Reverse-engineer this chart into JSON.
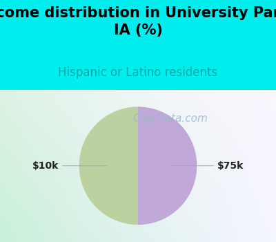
{
  "title": "Income distribution in University Park,\nIA (%)",
  "subtitle": "Hispanic or Latino residents",
  "title_fontsize": 15,
  "subtitle_fontsize": 12,
  "title_color": "#000000",
  "subtitle_color": "#00aaaa",
  "background_color": "#00EEEE",
  "chart_bg_top_right": "#f0f0ff",
  "chart_bg_bottom_left": "#c8f0d8",
  "slices": [
    50,
    50
  ],
  "slice_colors": [
    "#bdd0a0",
    "#c0a8d8"
  ],
  "labels": [
    "$10k",
    "$75k"
  ],
  "label_color": "#222222",
  "label_fontsize": 10,
  "watermark": "City-Data.com",
  "watermark_color": "#a0b8cc",
  "watermark_fontsize": 11,
  "line_color": "#b0a0c0"
}
